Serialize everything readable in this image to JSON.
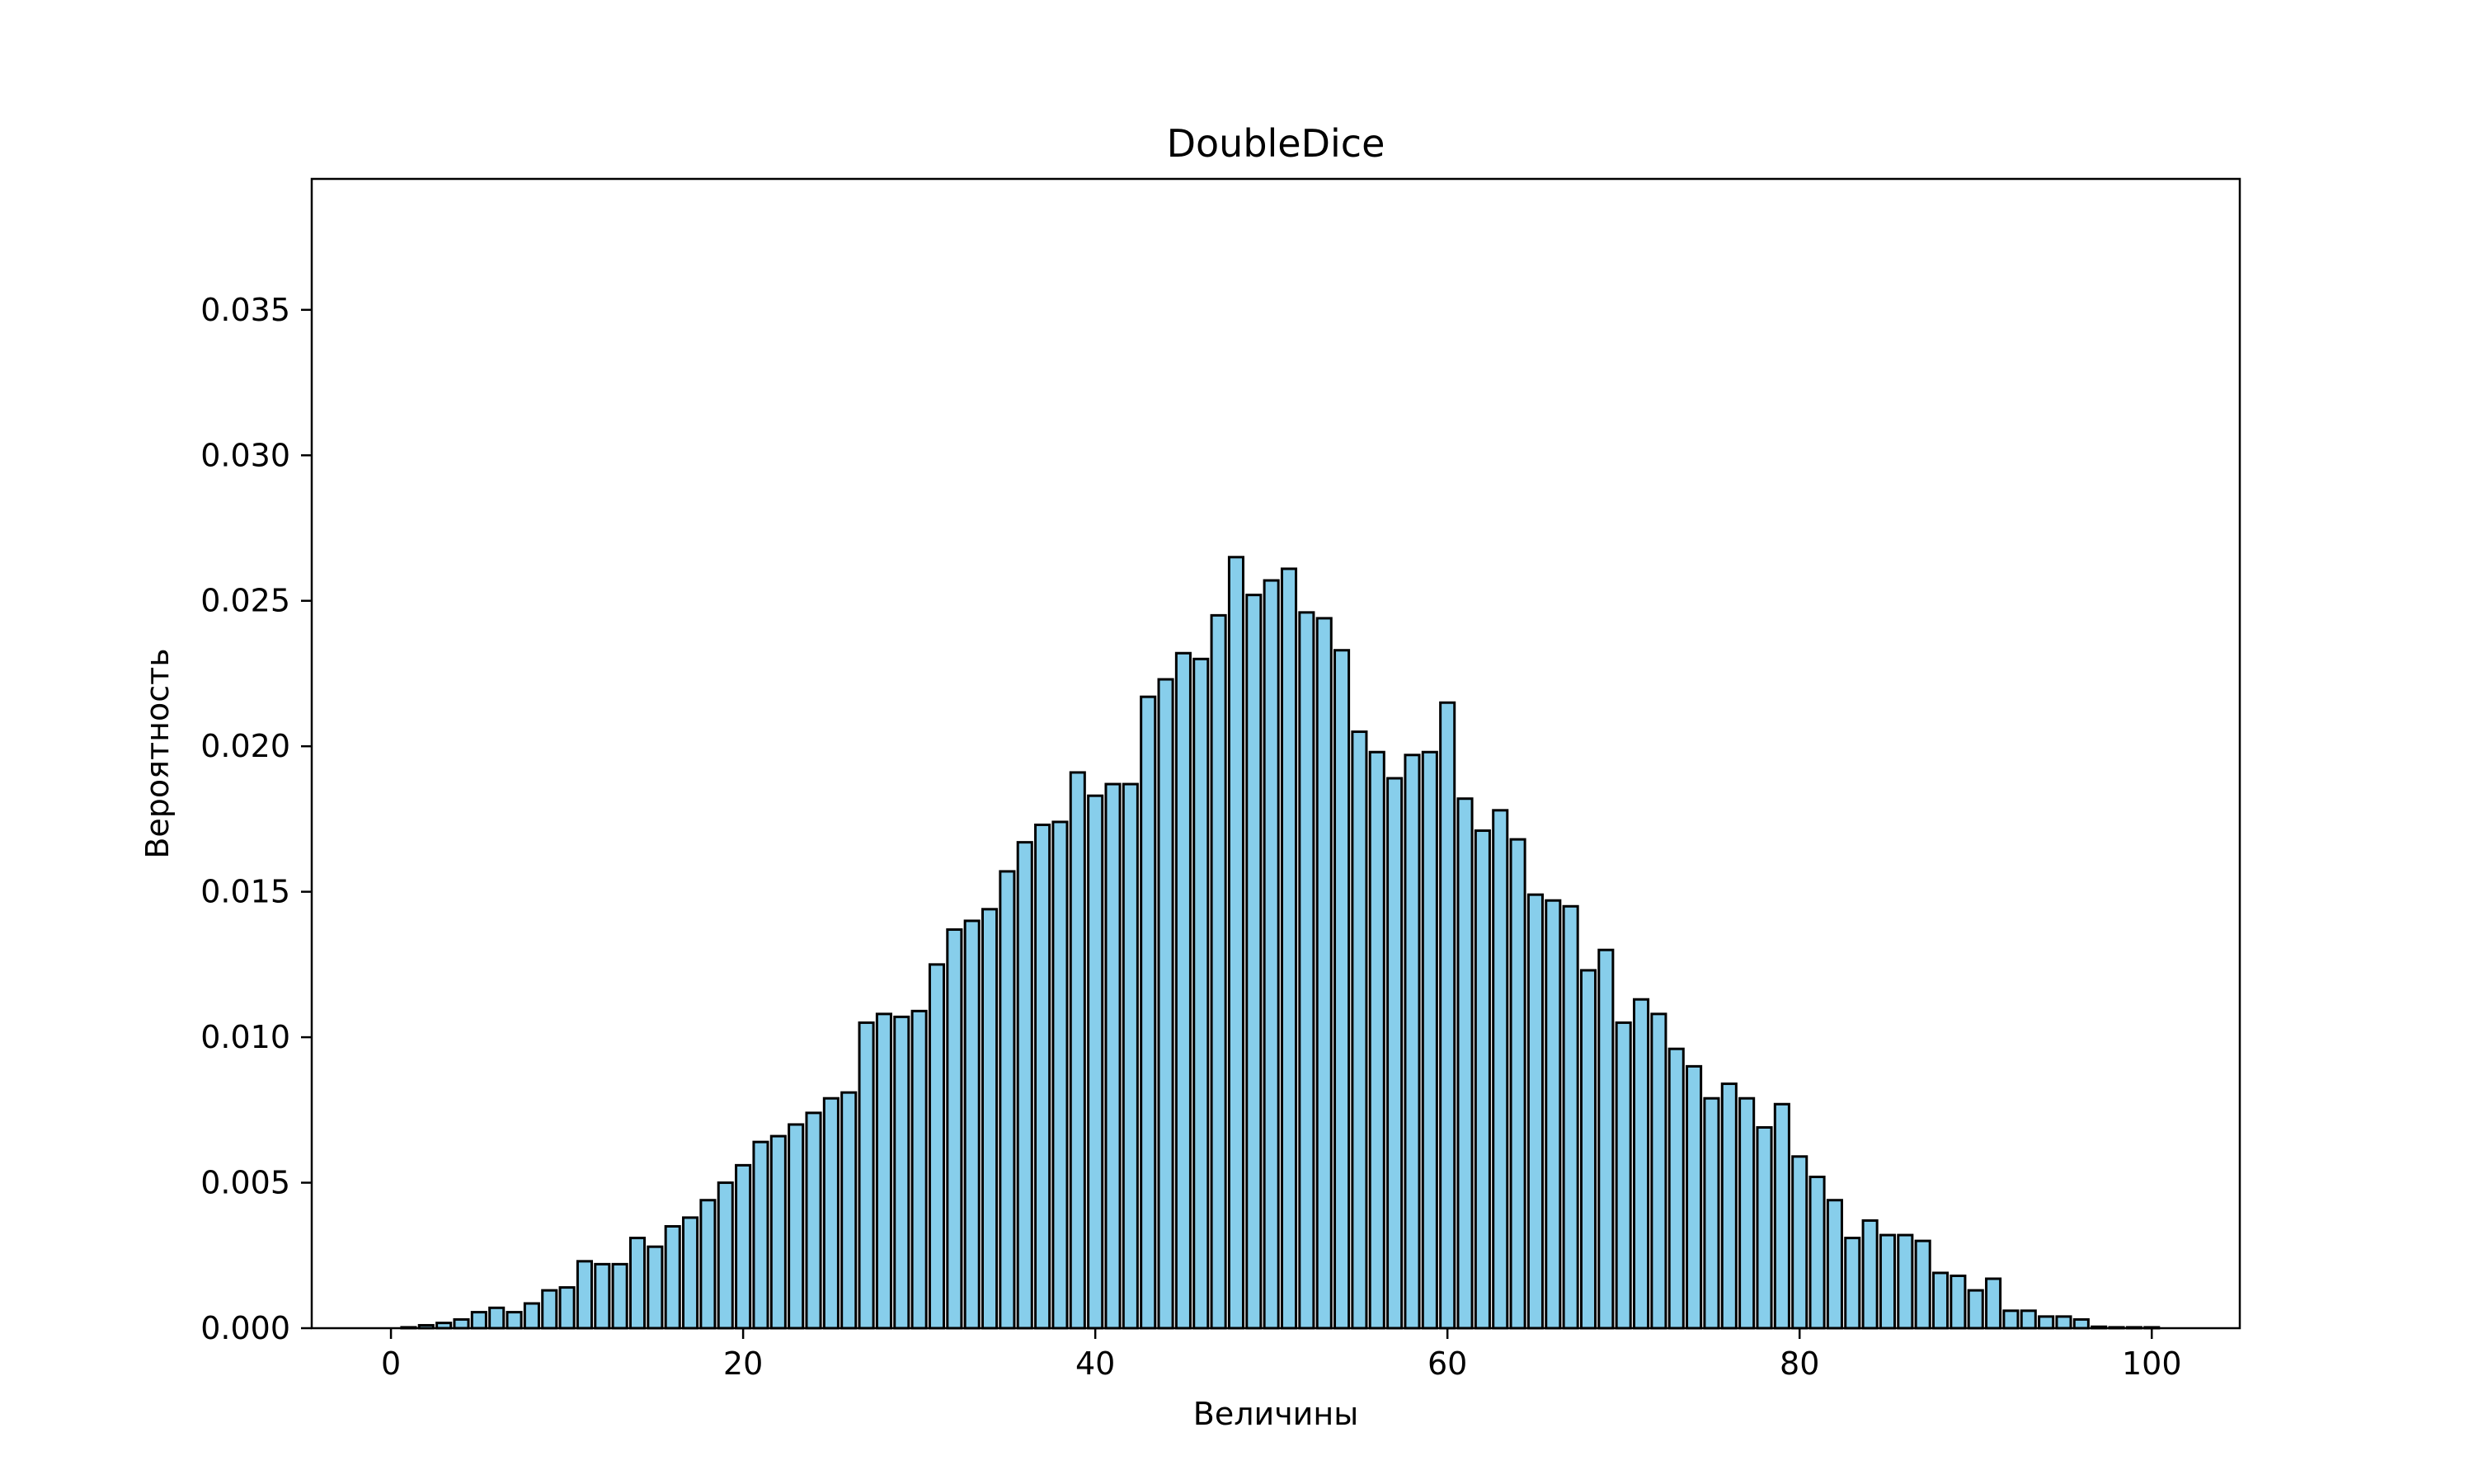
{
  "chart_data": {
    "type": "bar",
    "title": "DoubleDice",
    "xlabel": "Величины",
    "ylabel": "Вероятность",
    "xlim": [
      -4.5,
      105
    ],
    "ylim": [
      0,
      0.0395
    ],
    "xticks": [
      "0",
      "20",
      "40",
      "60",
      "80",
      "100"
    ],
    "yticks": [
      "0.000",
      "0.005",
      "0.010",
      "0.015",
      "0.020",
      "0.025",
      "0.030",
      "0.035"
    ],
    "grid": false,
    "bar_color": "#87ceeb",
    "edge_color": "#000000",
    "x": [
      0,
      1,
      2,
      3,
      4,
      5,
      6,
      7,
      8,
      9,
      10,
      11,
      12,
      13,
      14,
      15,
      16,
      17,
      18,
      19,
      20,
      21,
      22,
      23,
      24,
      25,
      26,
      27,
      28,
      29,
      30,
      31,
      32,
      33,
      34,
      35,
      36,
      37,
      38,
      39,
      40,
      41,
      42,
      43,
      44,
      45,
      46,
      47,
      48,
      49,
      50,
      51,
      52,
      53,
      54,
      55,
      56,
      57,
      58,
      59,
      60,
      61,
      62,
      63,
      64,
      65,
      66,
      67,
      68,
      69,
      70,
      71,
      72,
      73,
      74,
      75,
      76,
      77,
      78,
      79,
      80,
      81,
      82,
      83,
      84,
      85,
      86,
      87,
      88,
      89,
      90,
      91,
      92,
      93,
      94,
      95,
      96,
      97,
      98,
      99,
      100
    ],
    "values": [
      0.0,
      3e-05,
      0.0001,
      0.00018,
      0.0003,
      0.00055,
      0.0007,
      0.00055,
      0.00085,
      0.0013,
      0.0014,
      0.0023,
      0.0022,
      0.0022,
      0.0031,
      0.0028,
      0.0035,
      0.0038,
      0.0044,
      0.005,
      0.0056,
      0.0064,
      0.0066,
      0.007,
      0.0074,
      0.0079,
      0.0081,
      0.0105,
      0.0108,
      0.0107,
      0.0109,
      0.0125,
      0.0137,
      0.014,
      0.0144,
      0.0157,
      0.0167,
      0.0173,
      0.0174,
      0.0191,
      0.0183,
      0.0187,
      0.0187,
      0.0217,
      0.0223,
      0.0232,
      0.023,
      0.0245,
      0.0265,
      0.0252,
      0.0257,
      0.0261,
      0.0246,
      0.0244,
      0.0233,
      0.0205,
      0.0198,
      0.0189,
      0.0197,
      0.0198,
      0.0215,
      0.0182,
      0.0171,
      0.0178,
      0.0168,
      0.0149,
      0.0147,
      0.0145,
      0.0123,
      0.013,
      0.0105,
      0.0113,
      0.0108,
      0.0096,
      0.009,
      0.0079,
      0.0084,
      0.0079,
      0.0069,
      0.0077,
      0.0059,
      0.0052,
      0.0044,
      0.0031,
      0.0037,
      0.0032,
      0.0032,
      0.003,
      0.0019,
      0.0018,
      0.0013,
      0.0017,
      0.0006,
      0.0006,
      0.0004,
      0.0004,
      0.0003,
      5e-05,
      3e-05,
      3e-05,
      3e-05
    ]
  }
}
